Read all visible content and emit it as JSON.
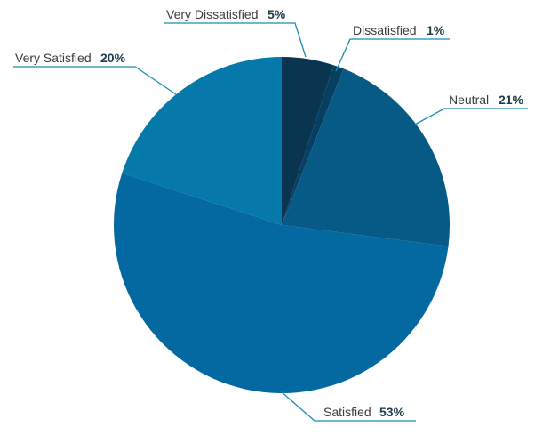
{
  "chart_data": {
    "type": "pie",
    "start_angle_deg": 0,
    "direction": "clockwise",
    "slices": [
      {
        "label": "Very Dissatisfied",
        "value": 5,
        "pct_label": "5%",
        "color": "#0a3550"
      },
      {
        "label": "Dissatisfied",
        "value": 1,
        "pct_label": "1%",
        "color": "#073f63"
      },
      {
        "label": "Neutral",
        "value": 21,
        "pct_label": "21%",
        "color": "#085a86"
      },
      {
        "label": "Satisfied",
        "value": 53,
        "pct_label": "53%",
        "color": "#0468a1"
      },
      {
        "label": "Very Satisfied",
        "value": 20,
        "pct_label": "20%",
        "color": "#0679ab"
      }
    ],
    "leader_line_color": "#1b8bb0"
  }
}
